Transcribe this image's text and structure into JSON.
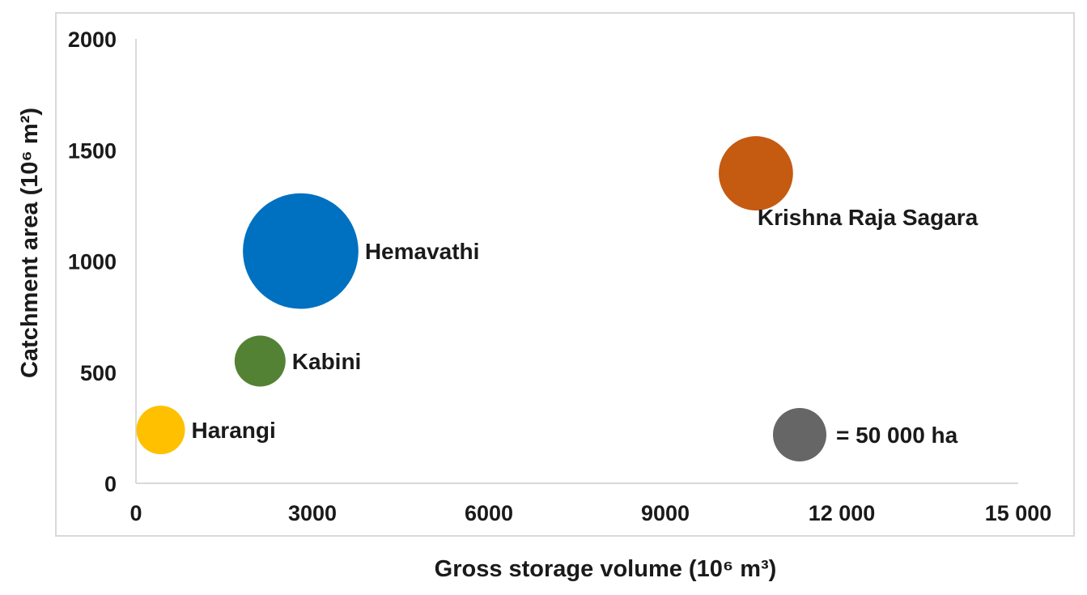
{
  "chart_data": {
    "type": "bubble",
    "xlabel": "Gross storage volume (10⁶ m³)",
    "ylabel": "Catchment area (10⁶ m²)",
    "xlim": [
      0,
      15000
    ],
    "ylim": [
      0,
      2000
    ],
    "x_ticks": [
      0,
      3000,
      6000,
      9000,
      12000,
      15000
    ],
    "x_tick_labels": [
      "0",
      "3000",
      "6000",
      "9000",
      "12 000",
      "15 000"
    ],
    "y_ticks": [
      0,
      500,
      1000,
      1500,
      2000
    ],
    "y_tick_labels": [
      "0",
      "500",
      "1000",
      "1500",
      "2000"
    ],
    "grid": false,
    "series": [
      {
        "name": "Harangi",
        "x": 420,
        "y": 240,
        "area_ha": 50000,
        "color": "#ffc000"
      },
      {
        "name": "Kabini",
        "x": 2110,
        "y": 550,
        "area_ha": 55000,
        "color": "#548235"
      },
      {
        "name": "Hemavathi",
        "x": 2800,
        "y": 1045,
        "area_ha": 283000,
        "color": "#0070c0"
      },
      {
        "name": "Krishna Raja Sagara",
        "x": 10540,
        "y": 1395,
        "area_ha": 117000,
        "color": "#c55a11"
      }
    ],
    "legend": {
      "text": "= 50 000 ha",
      "reference_area_ha": 50000,
      "color": "#666666",
      "placement": "bottom-right"
    }
  }
}
